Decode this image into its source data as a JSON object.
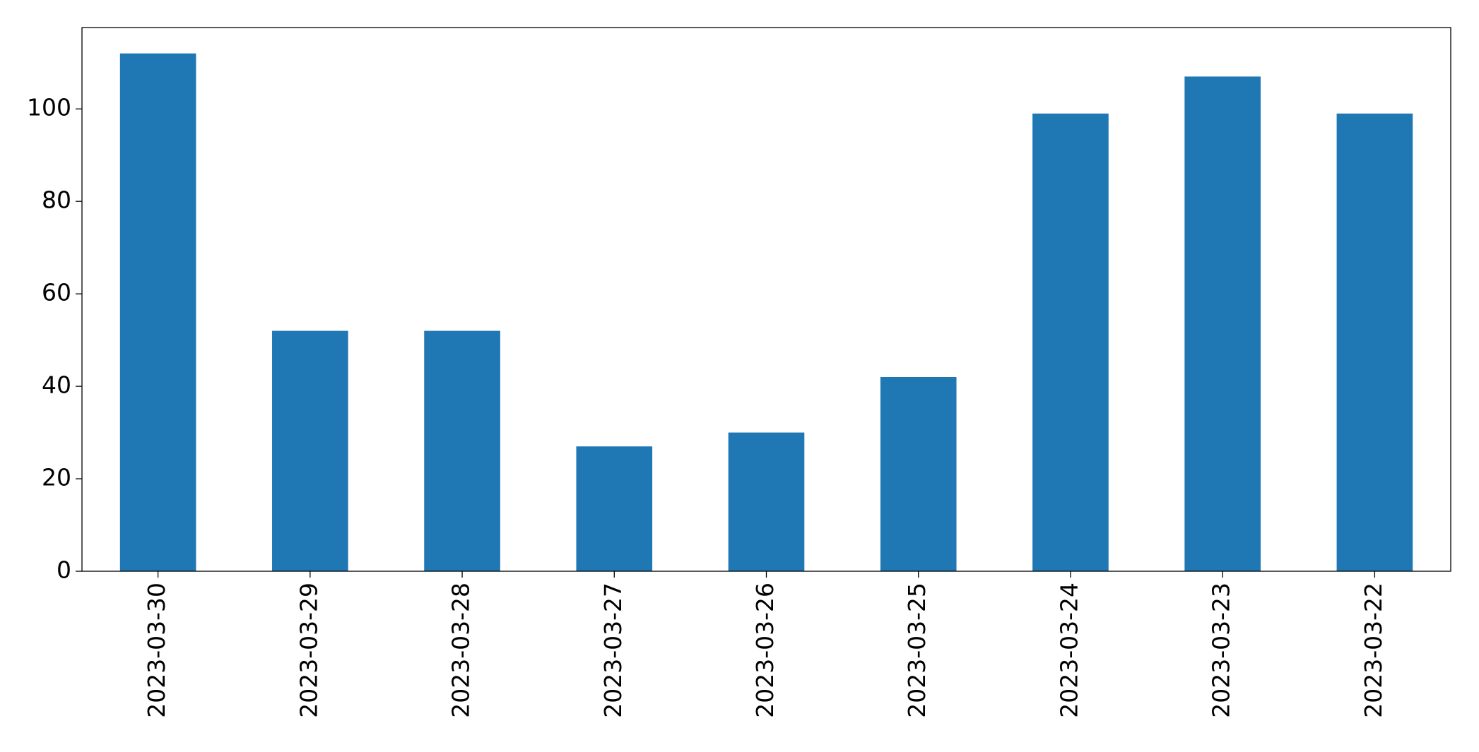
{
  "chart_data": {
    "type": "bar",
    "categories": [
      "2023-03-30",
      "2023-03-29",
      "2023-03-28",
      "2023-03-27",
      "2023-03-26",
      "2023-03-25",
      "2023-03-24",
      "2023-03-23",
      "2023-03-22"
    ],
    "values": [
      112,
      52,
      52,
      27,
      30,
      42,
      99,
      107,
      99
    ],
    "color": "#1f77b4",
    "ylim": [
      0,
      117.6
    ],
    "yticks": [
      0,
      20,
      40,
      60,
      80,
      100
    ],
    "grid": false
  }
}
